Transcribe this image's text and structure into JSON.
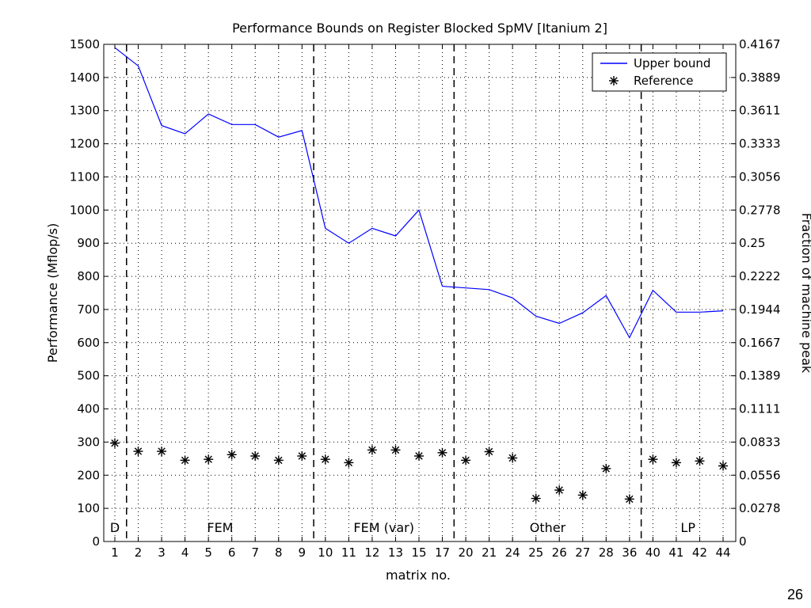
{
  "slide": {
    "number": "26"
  },
  "chart_data": {
    "type": "line",
    "title": "Performance Bounds on Register Blocked SpMV [Itanium 2]",
    "xlabel": "matrix no.",
    "ylabel": "Performance (Mflop/s)",
    "y2label": "Fraction of machine peak",
    "categories": [
      "1",
      "2",
      "3",
      "4",
      "5",
      "6",
      "7",
      "8",
      "9",
      "10",
      "11",
      "12",
      "13",
      "15",
      "17",
      "20",
      "21",
      "24",
      "25",
      "26",
      "27",
      "28",
      "36",
      "40",
      "41",
      "42",
      "44"
    ],
    "ylim": [
      0,
      1500
    ],
    "yticks": [
      0,
      100,
      200,
      300,
      400,
      500,
      600,
      700,
      800,
      900,
      1000,
      1100,
      1200,
      1300,
      1400,
      1500
    ],
    "y2ticks": [
      "0",
      "0.0278",
      "0.0556",
      "0.0833",
      "0.1111",
      "0.1389",
      "0.1667",
      "0.1944",
      "0.2222",
      "0.25",
      "0.2778",
      "0.3056",
      "0.3333",
      "0.3611",
      "0.3889",
      "0.4167"
    ],
    "grid": true,
    "legend_position": "top-right",
    "series": [
      {
        "name": "Upper bound",
        "style": "line",
        "color": "#0000ff",
        "values": [
          1490,
          1435,
          1255,
          1230,
          1290,
          1258,
          1258,
          1220,
          1240,
          945,
          900,
          945,
          922,
          1000,
          770,
          765,
          760,
          735,
          680,
          658,
          690,
          742,
          615,
          758,
          692,
          692,
          696
        ]
      },
      {
        "name": "Reference",
        "style": "markers",
        "marker": "asterisk",
        "color": "#000000",
        "values": [
          297,
          272,
          272,
          245,
          248,
          262,
          258,
          245,
          258,
          248,
          238,
          276,
          276,
          258,
          268,
          245,
          271,
          252,
          130,
          155,
          140,
          220,
          128,
          248,
          238,
          243,
          228
        ]
      }
    ],
    "dividers_after_index": [
      0,
      8,
      14,
      22
    ],
    "regions": [
      {
        "label": "D",
        "from": 0,
        "to": 0
      },
      {
        "label": "FEM",
        "from": 1,
        "to": 8
      },
      {
        "label": "FEM (var)",
        "from": 9,
        "to": 14
      },
      {
        "label": "Other",
        "from": 15,
        "to": 22
      },
      {
        "label": "LP",
        "from": 23,
        "to": 26
      }
    ]
  }
}
